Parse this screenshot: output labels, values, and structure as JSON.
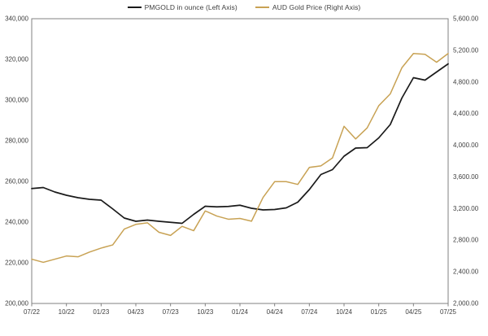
{
  "chart_data": {
    "type": "line",
    "title": "",
    "grid": false,
    "legend_position": "top",
    "background_color": "#ffffff",
    "axis_box_color": "#808080",
    "tick_label_color": "#404040",
    "categories": [
      "07/22",
      "08/22",
      "09/22",
      "10/22",
      "11/22",
      "12/22",
      "01/23",
      "02/23",
      "03/23",
      "04/23",
      "05/23",
      "06/23",
      "07/23",
      "08/23",
      "09/23",
      "10/23",
      "11/23",
      "12/23",
      "01/24",
      "02/24",
      "03/24",
      "04/24",
      "05/24",
      "06/24",
      "07/24",
      "08/24",
      "09/24",
      "10/24",
      "11/24",
      "12/24",
      "01/25",
      "02/25",
      "03/25",
      "04/25",
      "05/25",
      "06/25",
      "07/25"
    ],
    "x_tick_labels": [
      "07/22",
      "10/22",
      "01/23",
      "04/23",
      "07/23",
      "10/23",
      "01/24",
      "04/24",
      "07/24",
      "10/24",
      "01/25",
      "04/25",
      "07/25"
    ],
    "x_tick_every": 3,
    "left_axis": {
      "min": 200000,
      "max": 340000,
      "step": 20000,
      "tick_labels": [
        "340,000",
        "320,000",
        "300,000",
        "280,000",
        "260,000",
        "240,000",
        "220,000",
        "200,000"
      ]
    },
    "right_axis": {
      "min": 2000,
      "max": 5600,
      "step": 400,
      "tick_labels": [
        "5,600.00",
        "5,200.00",
        "4,800.00",
        "4,400.00",
        "4,000.00",
        "3,600.00",
        "3,200.00",
        "2,800.00",
        "2,400.00",
        "2,000.00"
      ]
    },
    "series": [
      {
        "name": "PMGOLD in ounce (Left Axis)",
        "axis": "left",
        "color": "#1a1a1a",
        "values": [
          256500,
          257000,
          254800,
          253200,
          252000,
          251200,
          250800,
          246500,
          242000,
          240400,
          241000,
          240400,
          239900,
          239400,
          243800,
          247800,
          247500,
          247700,
          248300,
          246800,
          246000,
          246200,
          247000,
          249800,
          256000,
          263400,
          265800,
          272400,
          276400,
          276600,
          281400,
          288000,
          301000,
          311000,
          309800,
          313800,
          317800
        ]
      },
      {
        "name": "AUD Gold Price (Right Axis)",
        "axis": "right",
        "color": "#c8a254",
        "values": [
          2560,
          2520,
          2560,
          2600,
          2590,
          2650,
          2700,
          2740,
          2940,
          3000,
          3020,
          2900,
          2860,
          2975,
          2920,
          3170,
          3105,
          3065,
          3075,
          3040,
          3340,
          3540,
          3540,
          3505,
          3720,
          3740,
          3840,
          4240,
          4080,
          4220,
          4500,
          4650,
          4980,
          5160,
          5150,
          5050,
          5160
        ]
      }
    ]
  }
}
